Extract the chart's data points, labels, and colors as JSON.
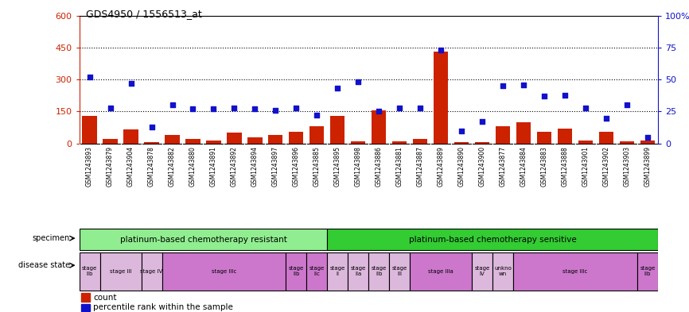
{
  "title": "GDS4950 / 1556513_at",
  "samples": [
    "GSM1243893",
    "GSM1243879",
    "GSM1243904",
    "GSM1243878",
    "GSM1243882",
    "GSM1243880",
    "GSM1243891",
    "GSM1243892",
    "GSM1243894",
    "GSM1243897",
    "GSM1243896",
    "GSM1243885",
    "GSM1243895",
    "GSM1243898",
    "GSM1243886",
    "GSM1243881",
    "GSM1243887",
    "GSM1243889",
    "GSM1243890",
    "GSM1243900",
    "GSM1243877",
    "GSM1243884",
    "GSM1243883",
    "GSM1243888",
    "GSM1243901",
    "GSM1243902",
    "GSM1243903",
    "GSM1243899"
  ],
  "counts": [
    130,
    20,
    65,
    5,
    40,
    20,
    15,
    50,
    30,
    40,
    55,
    80,
    130,
    10,
    155,
    10,
    20,
    430,
    5,
    5,
    80,
    100,
    55,
    70,
    15,
    55,
    10,
    15
  ],
  "percentile_ranks": [
    52,
    28,
    47,
    13,
    30,
    27,
    27,
    28,
    27,
    26,
    28,
    22,
    43,
    48,
    25,
    28,
    28,
    73,
    10,
    17,
    45,
    46,
    37,
    38,
    28,
    20,
    30,
    5
  ],
  "ylim_left": [
    0,
    600
  ],
  "ylim_right": [
    0,
    100
  ],
  "yticks_left": [
    0,
    150,
    300,
    450,
    600
  ],
  "yticks_right": [
    0,
    25,
    50,
    75,
    100
  ],
  "specimen_groups": [
    {
      "label": "platinum-based chemotherapy resistant",
      "start": 0,
      "end": 12,
      "color": "#90EE90"
    },
    {
      "label": "platinum-based chemotherapy sensitive",
      "start": 12,
      "end": 28,
      "color": "#33CC33"
    }
  ],
  "disease_states": [
    {
      "label": "stage\nIIb",
      "start": 0,
      "end": 1,
      "color": "#DDB8DD"
    },
    {
      "label": "stage III",
      "start": 1,
      "end": 3,
      "color": "#DDB8DD"
    },
    {
      "label": "stage IV",
      "start": 3,
      "end": 4,
      "color": "#DDB8DD"
    },
    {
      "label": "stage IIIc",
      "start": 4,
      "end": 10,
      "color": "#CC77CC"
    },
    {
      "label": "stage\nIIb",
      "start": 10,
      "end": 11,
      "color": "#CC77CC"
    },
    {
      "label": "stage\nIIc",
      "start": 11,
      "end": 12,
      "color": "#CC77CC"
    },
    {
      "label": "stage\nII",
      "start": 12,
      "end": 13,
      "color": "#DDB8DD"
    },
    {
      "label": "stage\nIIa",
      "start": 13,
      "end": 14,
      "color": "#DDB8DD"
    },
    {
      "label": "stage\nIIb",
      "start": 14,
      "end": 15,
      "color": "#DDB8DD"
    },
    {
      "label": "stage\nIII",
      "start": 15,
      "end": 16,
      "color": "#DDB8DD"
    },
    {
      "label": "stage IIIa",
      "start": 16,
      "end": 19,
      "color": "#CC77CC"
    },
    {
      "label": "stage\nIV",
      "start": 19,
      "end": 20,
      "color": "#DDB8DD"
    },
    {
      "label": "unkno\nwn",
      "start": 20,
      "end": 21,
      "color": "#DDB8DD"
    },
    {
      "label": "stage IIIc",
      "start": 21,
      "end": 27,
      "color": "#CC77CC"
    },
    {
      "label": "stage\nIIb",
      "start": 27,
      "end": 28,
      "color": "#CC77CC"
    }
  ],
  "bar_color": "#CC2200",
  "dot_color": "#1111CC",
  "left_axis_color": "#CC2200",
  "right_axis_color": "#1111CC",
  "bg_color": "#FFFFFF",
  "plot_bg_color": "#FFFFFF",
  "label_bg_color": "#CCCCCC"
}
